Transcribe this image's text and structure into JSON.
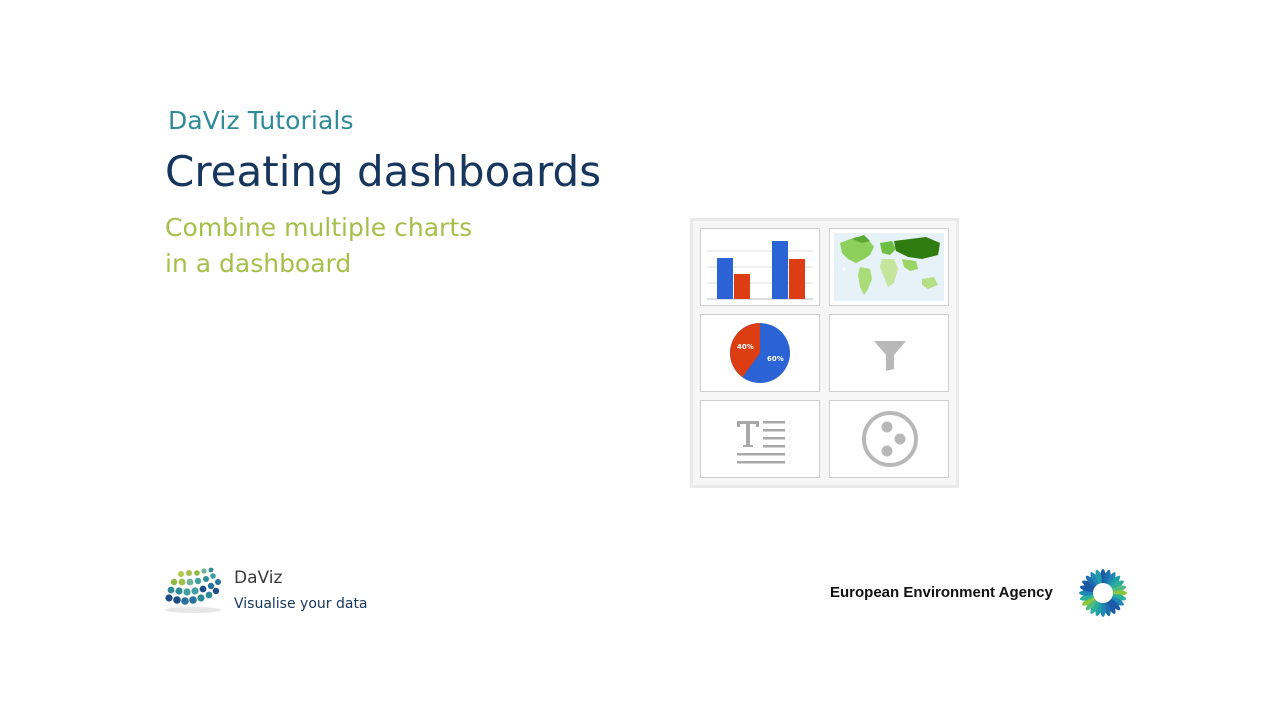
{
  "header": {
    "series_label": "DaViz Tutorials",
    "title": "Creating dashboards",
    "subtitle_lines": [
      "Combine multiple charts",
      "in a dashboard"
    ]
  },
  "dashboard": {
    "tiles": [
      {
        "kind": "bar-chart",
        "icon": "bar-chart-icon"
      },
      {
        "kind": "map-chart",
        "icon": "world-map-icon"
      },
      {
        "kind": "pie-chart",
        "icon": "pie-chart-icon",
        "labels": [
          "40%",
          "60%"
        ]
      },
      {
        "kind": "filter",
        "icon": "funnel-icon"
      },
      {
        "kind": "text",
        "icon": "text-block-icon"
      },
      {
        "kind": "widget",
        "icon": "dots-circle-icon"
      }
    ],
    "colors": {
      "blue": "#2b62d4",
      "red": "#dc3d12",
      "map_green": "#2f7d10"
    }
  },
  "footer": {
    "brand_name": "DaViz",
    "brand_tagline": "Visualise your data",
    "agency_name": "European Environment Agency"
  },
  "colors": {
    "series_label": "#2e8b96",
    "title": "#17365d",
    "subtitle": "#a5c04a"
  }
}
